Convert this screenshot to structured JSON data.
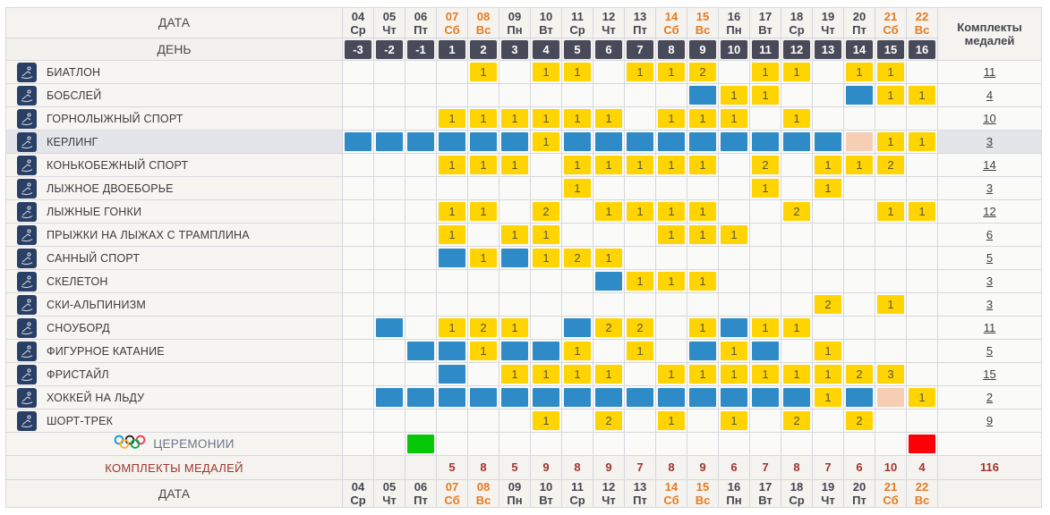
{
  "header": {
    "date_label": "ДАТА",
    "day_label": "ДЕНЬ",
    "medals_label": "Комплекты медалей",
    "dates": [
      {
        "num": "04",
        "wd": "Ср",
        "weekend": false
      },
      {
        "num": "05",
        "wd": "Чт",
        "weekend": false
      },
      {
        "num": "06",
        "wd": "Пт",
        "weekend": false
      },
      {
        "num": "07",
        "wd": "Сб",
        "weekend": true
      },
      {
        "num": "08",
        "wd": "Вс",
        "weekend": true
      },
      {
        "num": "09",
        "wd": "Пн",
        "weekend": false
      },
      {
        "num": "10",
        "wd": "Вт",
        "weekend": false
      },
      {
        "num": "11",
        "wd": "Ср",
        "weekend": false
      },
      {
        "num": "12",
        "wd": "Чт",
        "weekend": false
      },
      {
        "num": "13",
        "wd": "Пт",
        "weekend": false
      },
      {
        "num": "14",
        "wd": "Сб",
        "weekend": true
      },
      {
        "num": "15",
        "wd": "Вс",
        "weekend": true
      },
      {
        "num": "16",
        "wd": "Пн",
        "weekend": false
      },
      {
        "num": "17",
        "wd": "Вт",
        "weekend": false
      },
      {
        "num": "18",
        "wd": "Ср",
        "weekend": false
      },
      {
        "num": "19",
        "wd": "Чт",
        "weekend": false
      },
      {
        "num": "20",
        "wd": "Пт",
        "weekend": false
      },
      {
        "num": "21",
        "wd": "Сб",
        "weekend": true
      },
      {
        "num": "22",
        "wd": "Вс",
        "weekend": true
      }
    ],
    "days": [
      "-3",
      "-2",
      "-1",
      "1",
      "2",
      "3",
      "4",
      "5",
      "6",
      "7",
      "8",
      "9",
      "10",
      "11",
      "12",
      "13",
      "14",
      "15",
      "16"
    ]
  },
  "cell_legend": {
    "number": "medal event count",
    "B": "competition day (no medals)",
    "P": "reserve day",
    "G": "opening ceremony",
    "R": "closing ceremony"
  },
  "colors": {
    "medal_yellow": "#ffd400",
    "competition_blue": "#2e8bc7",
    "reserve_peach": "#f5ceb3",
    "opening_green": "#06c806",
    "closing_red": "#fb0006",
    "icon_navy": "#2a3f66",
    "weekend_orange": "#e87a1e",
    "day_slate": "#494a59",
    "totals_red": "#a0342f"
  },
  "sports": [
    {
      "name": "БИАТЛОН",
      "icon": "biathlon-icon",
      "total": "11",
      "cells": [
        "",
        "",
        "",
        "",
        "1",
        "",
        "1",
        "1",
        "",
        "1",
        "1",
        "2",
        "",
        "1",
        "1",
        "",
        "1",
        "1",
        ""
      ]
    },
    {
      "name": "БОБСЛЕЙ",
      "icon": "bobsleigh-icon",
      "total": "4",
      "cells": [
        "",
        "",
        "",
        "",
        "",
        "",
        "",
        "",
        "",
        "",
        "",
        "B",
        "1",
        "1",
        "",
        "",
        "B",
        "1",
        "1"
      ]
    },
    {
      "name": "ГОРНОЛЫЖНЫЙ СПОРТ",
      "icon": "alpine-skiing-icon",
      "total": "10",
      "cells": [
        "",
        "",
        "",
        "1",
        "1",
        "1",
        "1",
        "1",
        "1",
        "",
        "1",
        "1",
        "1",
        "",
        "1",
        "",
        "",
        "",
        ""
      ]
    },
    {
      "name": "КЕРЛИНГ",
      "icon": "curling-icon",
      "total": "3",
      "highlight": true,
      "cells": [
        "B",
        "B",
        "B",
        "B",
        "B",
        "B",
        "1",
        "B",
        "B",
        "B",
        "B",
        "B",
        "B",
        "B",
        "B",
        "B",
        "P",
        "1",
        "1"
      ]
    },
    {
      "name": "КОНЬКОБЕЖНЫЙ СПОРТ",
      "icon": "speed-skating-icon",
      "total": "14",
      "cells": [
        "",
        "",
        "",
        "1",
        "1",
        "1",
        "",
        "1",
        "1",
        "1",
        "1",
        "1",
        "",
        "2",
        "",
        "1",
        "1",
        "2",
        ""
      ]
    },
    {
      "name": "ЛЫЖНОЕ ДВОЕБОРЬЕ",
      "icon": "nordic-combined-icon",
      "total": "3",
      "cells": [
        "",
        "",
        "",
        "",
        "",
        "",
        "",
        "1",
        "",
        "",
        "",
        "",
        "",
        "1",
        "",
        "1",
        "",
        "",
        ""
      ]
    },
    {
      "name": "ЛЫЖНЫЕ ГОНКИ",
      "icon": "cross-country-icon",
      "total": "12",
      "cells": [
        "",
        "",
        "",
        "1",
        "1",
        "",
        "2",
        "",
        "1",
        "1",
        "1",
        "1",
        "",
        "",
        "2",
        "",
        "",
        "1",
        "1"
      ]
    },
    {
      "name": "ПРЫЖКИ НА ЛЫЖАХ С ТРАМПЛИНА",
      "icon": "ski-jumping-icon",
      "total": "6",
      "cells": [
        "",
        "",
        "",
        "1",
        "",
        "1",
        "1",
        "",
        "",
        "",
        "1",
        "1",
        "1",
        "",
        "",
        "",
        "",
        "",
        ""
      ]
    },
    {
      "name": "САННЫЙ СПОРТ",
      "icon": "luge-icon",
      "total": "5",
      "cells": [
        "",
        "",
        "",
        "B",
        "1",
        "B",
        "1",
        "2",
        "1",
        "",
        "",
        "",
        "",
        "",
        "",
        "",
        "",
        "",
        ""
      ]
    },
    {
      "name": "СКЕЛЕТОН",
      "icon": "skeleton-icon",
      "total": "3",
      "cells": [
        "",
        "",
        "",
        "",
        "",
        "",
        "",
        "",
        "B",
        "1",
        "1",
        "1",
        "",
        "",
        "",
        "",
        "",
        "",
        ""
      ]
    },
    {
      "name": "СКИ-АЛЬПИНИЗМ",
      "icon": "ski-mountaineering-icon",
      "total": "3",
      "cells": [
        "",
        "",
        "",
        "",
        "",
        "",
        "",
        "",
        "",
        "",
        "",
        "",
        "",
        "",
        "",
        "2",
        "",
        "1",
        ""
      ]
    },
    {
      "name": "СНОУБОРД",
      "icon": "snowboard-icon",
      "total": "11",
      "cells": [
        "",
        "B",
        "",
        "1",
        "2",
        "1",
        "",
        "B",
        "2",
        "2",
        "",
        "1",
        "B",
        "1",
        "1",
        "",
        "",
        "",
        ""
      ]
    },
    {
      "name": "ФИГУРНОЕ КАТАНИЕ",
      "icon": "figure-skating-icon",
      "total": "5",
      "cells": [
        "",
        "",
        "B",
        "B",
        "1",
        "B",
        "B",
        "1",
        "",
        "1",
        "",
        "B",
        "1",
        "B",
        "",
        "1",
        "",
        "",
        ""
      ]
    },
    {
      "name": "ФРИСТАЙЛ",
      "icon": "freestyle-icon",
      "total": "15",
      "cells": [
        "",
        "",
        "",
        "B",
        "",
        "1",
        "1",
        "1",
        "1",
        "",
        "1",
        "1",
        "1",
        "1",
        "1",
        "1",
        "2",
        "3",
        ""
      ]
    },
    {
      "name": "ХОККЕЙ НА ЛЬДУ",
      "icon": "ice-hockey-icon",
      "total": "2",
      "cells": [
        "",
        "B",
        "B",
        "B",
        "B",
        "B",
        "B",
        "B",
        "B",
        "B",
        "B",
        "B",
        "B",
        "B",
        "B",
        "1",
        "B",
        "P",
        "1"
      ]
    },
    {
      "name": "ШОРТ-ТРЕК",
      "icon": "short-track-icon",
      "total": "9",
      "cells": [
        "",
        "",
        "",
        "",
        "",
        "",
        "1",
        "",
        "2",
        "",
        "1",
        "",
        "1",
        "",
        "2",
        "",
        "2",
        "",
        ""
      ]
    }
  ],
  "ceremonies": {
    "label": "ЦЕРЕМОНИИ",
    "icon": "olympic-rings-icon",
    "cells": [
      "",
      "",
      "G",
      "",
      "",
      "",
      "",
      "",
      "",
      "",
      "",
      "",
      "",
      "",
      "",
      "",
      "",
      "",
      "R"
    ]
  },
  "totals_row": {
    "label": "КОМПЛЕКТЫ МЕДАЛЕЙ",
    "values": [
      "",
      "",
      "",
      "5",
      "8",
      "5",
      "9",
      "8",
      "9",
      "7",
      "8",
      "9",
      "6",
      "7",
      "8",
      "7",
      "6",
      "10",
      "4"
    ],
    "grand_total": "116"
  }
}
